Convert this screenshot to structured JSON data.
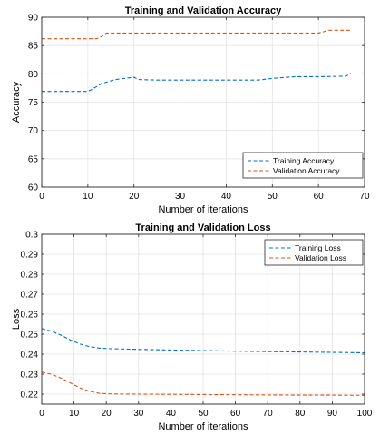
{
  "chart_data": [
    {
      "type": "line",
      "title": "Training and Validation Accuracy",
      "xlabel": "Number of iterations",
      "ylabel": "Accuracy",
      "xlim": [
        0,
        70
      ],
      "ylim": [
        60,
        90
      ],
      "xticks": [
        0,
        10,
        20,
        30,
        40,
        50,
        60,
        70
      ],
      "yticks": [
        60,
        65,
        70,
        75,
        80,
        85,
        90
      ],
      "grid": true,
      "legend_position": "bottom-right",
      "series": [
        {
          "name": "Training Accuracy",
          "color": "#0072BD",
          "style": "dashed",
          "x": [
            0,
            10,
            11,
            13,
            16,
            19,
            20,
            21,
            25,
            30,
            40,
            47,
            50,
            55,
            60,
            66,
            67
          ],
          "y": [
            76.9,
            76.9,
            77.3,
            78.3,
            79.0,
            79.3,
            79.4,
            79.0,
            78.9,
            78.9,
            78.9,
            78.9,
            79.2,
            79.5,
            79.5,
            79.6,
            80.1
          ]
        },
        {
          "name": "Validation Accuracy",
          "color": "#D95319",
          "style": "dashed",
          "x": [
            0,
            12,
            13,
            14,
            20,
            30,
            40,
            50,
            60,
            61,
            62,
            67
          ],
          "y": [
            86.2,
            86.2,
            86.6,
            87.2,
            87.2,
            87.2,
            87.2,
            87.2,
            87.2,
            87.4,
            87.7,
            87.7
          ]
        }
      ]
    },
    {
      "type": "line",
      "title": "Training and Validation Loss",
      "xlabel": "Number of iterations",
      "ylabel": "Loss",
      "xlim": [
        0,
        100
      ],
      "ylim": [
        0.215,
        0.3
      ],
      "xticks": [
        0,
        10,
        20,
        30,
        40,
        50,
        60,
        70,
        80,
        90,
        100
      ],
      "yticks": [
        0.22,
        0.23,
        0.24,
        0.25,
        0.26,
        0.27,
        0.28,
        0.29,
        0.3
      ],
      "yticklabels": [
        "0.22",
        "0.23",
        "0.24",
        "0.25",
        "0.26",
        "0.27",
        "0.28",
        "0.29",
        "0.3"
      ],
      "grid": true,
      "legend_position": "top-right",
      "series": [
        {
          "name": "Training Loss",
          "color": "#0072BD",
          "style": "dashed",
          "x": [
            0,
            3,
            6,
            9,
            12,
            15,
            18,
            22,
            30,
            40,
            50,
            60,
            70,
            80,
            90,
            100
          ],
          "y": [
            0.2528,
            0.2515,
            0.2495,
            0.247,
            0.245,
            0.2437,
            0.243,
            0.2427,
            0.2424,
            0.2421,
            0.2418,
            0.2415,
            0.2413,
            0.2411,
            0.2409,
            0.2407
          ]
        },
        {
          "name": "Validation Loss",
          "color": "#D95319",
          "style": "dashed",
          "x": [
            0,
            3,
            6,
            9,
            12,
            15,
            18,
            22,
            30,
            40,
            50,
            60,
            70,
            80,
            90,
            100
          ],
          "y": [
            0.231,
            0.23,
            0.228,
            0.2255,
            0.223,
            0.2213,
            0.2204,
            0.2201,
            0.22,
            0.2199,
            0.2198,
            0.2197,
            0.2196,
            0.2195,
            0.2195,
            0.2194
          ]
        }
      ]
    }
  ]
}
